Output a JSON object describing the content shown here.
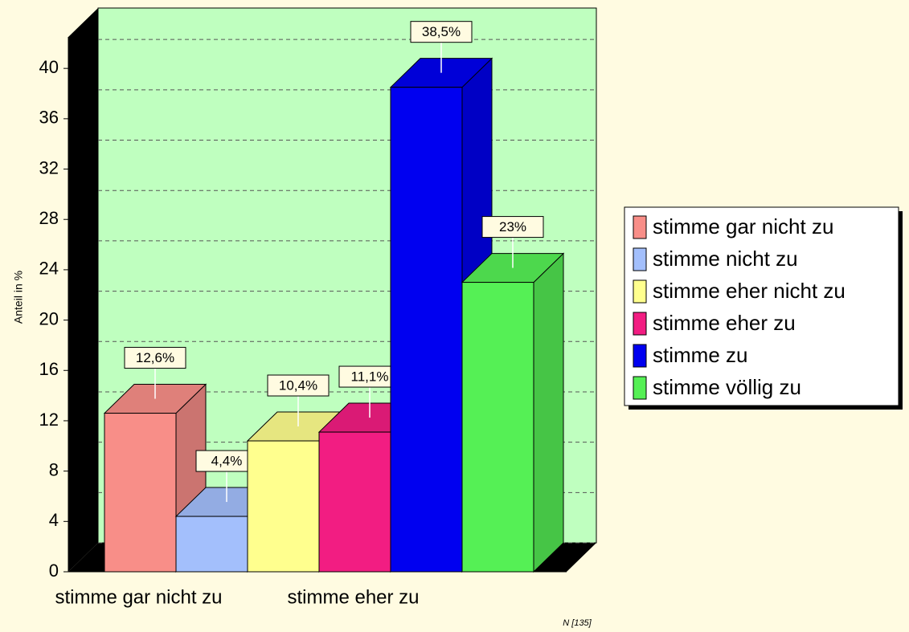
{
  "chart_data": {
    "type": "bar",
    "y_axis_label": "Anteil in %",
    "note": "N [135]",
    "categories": [
      "stimme gar nicht zu",
      null,
      null,
      "stimme eher zu",
      null,
      null
    ],
    "values": [
      12.6,
      4.4,
      10.4,
      11.1,
      38.5,
      23
    ],
    "value_labels": [
      "12,6%",
      "4,4%",
      "10,4%",
      "11,1%",
      "38,5%",
      "23%"
    ],
    "colors": [
      "#f88e88",
      "#a3bffc",
      "#ffff8e",
      "#f21d82",
      "#0000f0",
      "#55f055"
    ],
    "legend": [
      "stimme gar nicht zu",
      "stimme nicht zu",
      "stimme eher nicht zu",
      "stimme eher zu",
      "stimme zu",
      "stimme völlig zu"
    ],
    "ylim": [
      0,
      42.5
    ],
    "yticks": [
      0,
      4,
      8,
      12,
      16,
      20,
      24,
      28,
      32,
      36,
      40
    ],
    "grid": true
  }
}
